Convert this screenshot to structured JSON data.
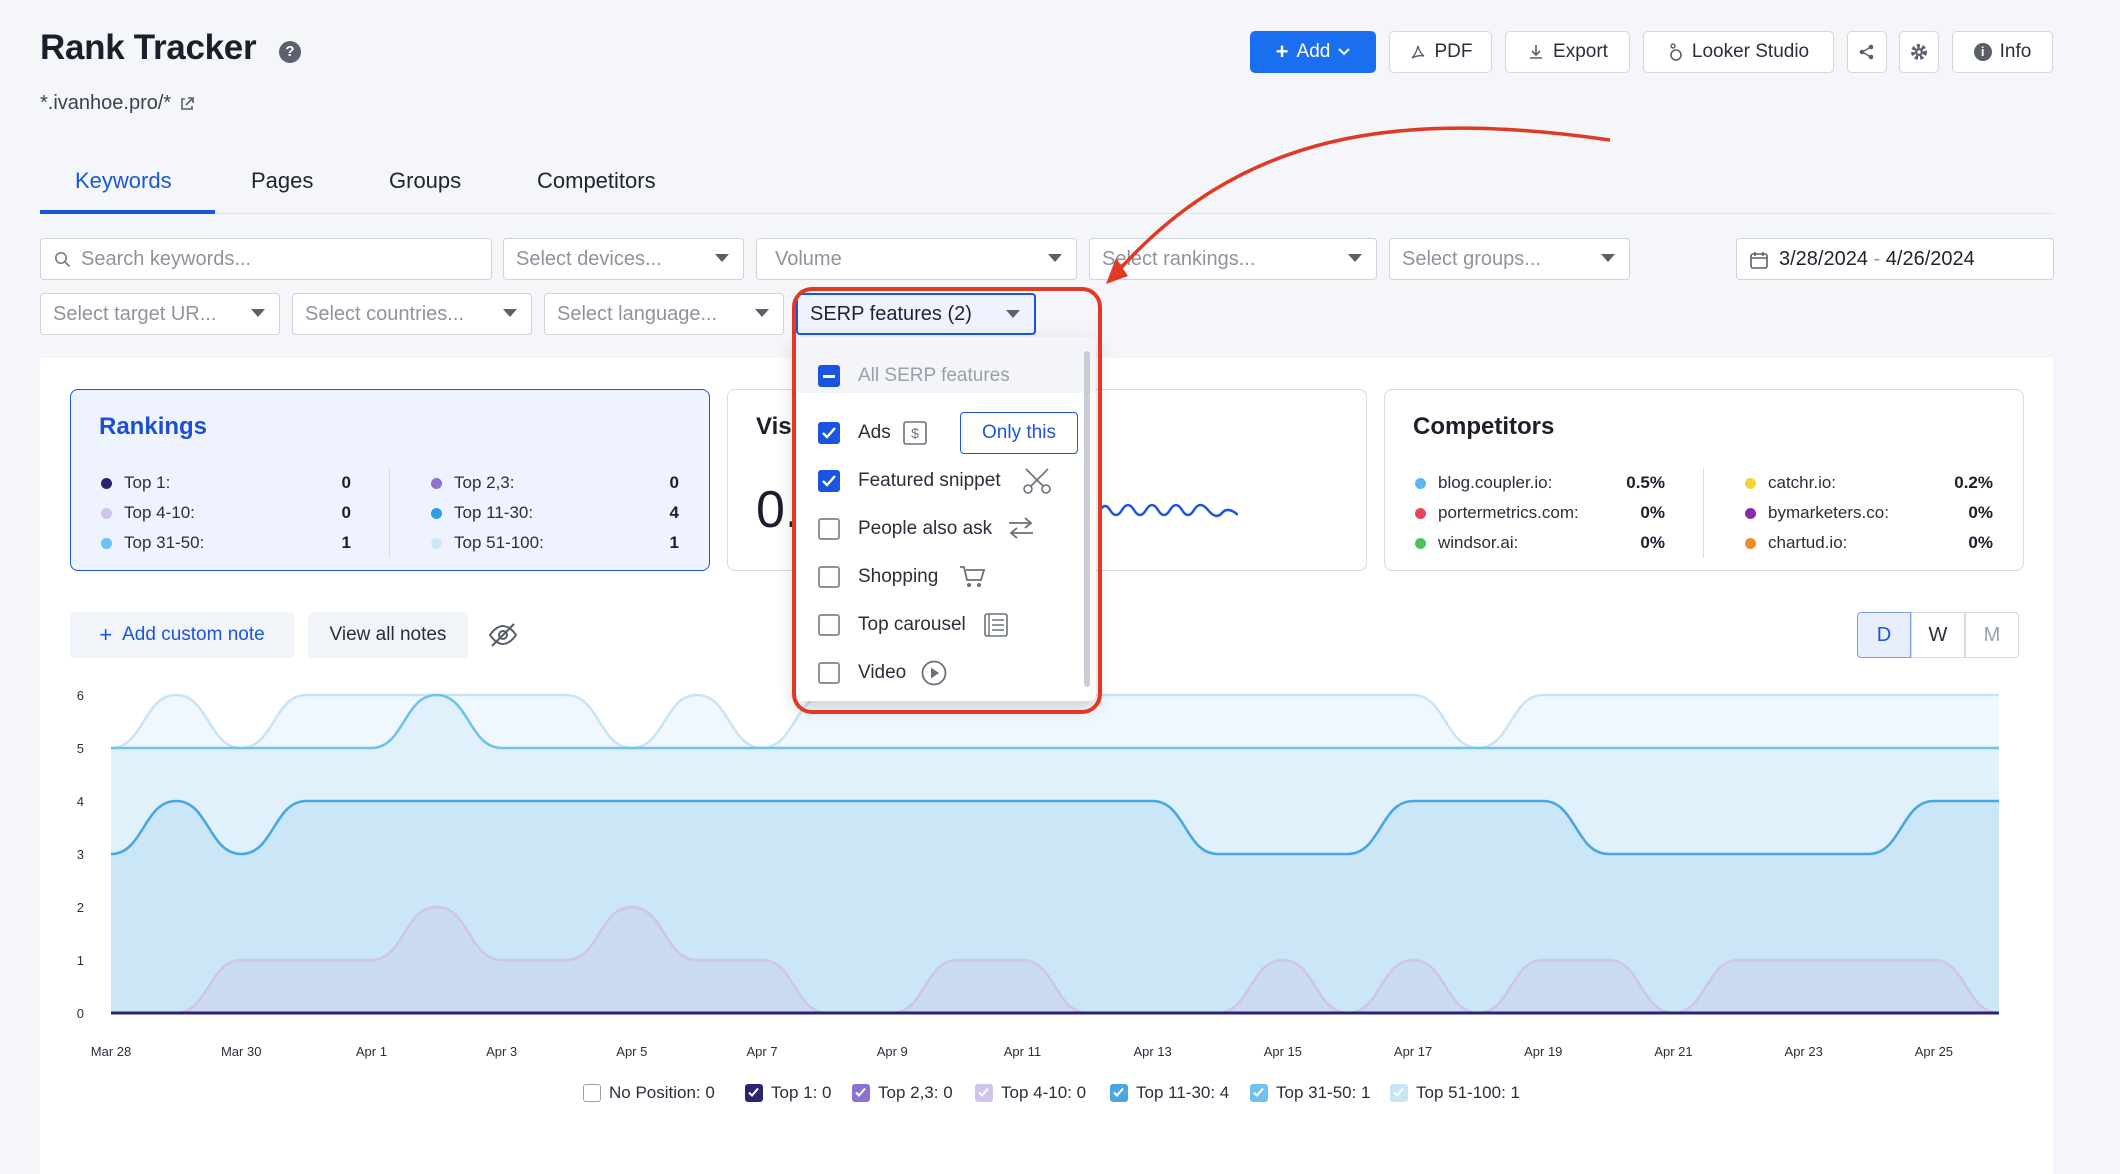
{
  "header": {
    "title": "Rank Tracker",
    "help": "?",
    "project": "*.ivanhoe.pro/*"
  },
  "toolbar": {
    "add": "Add",
    "pdf": "PDF",
    "export": "Export",
    "looker": "Looker Studio",
    "info": "Info"
  },
  "tabs": [
    "Keywords",
    "Pages",
    "Groups",
    "Competitors"
  ],
  "filters": {
    "search_placeholder": "Search keywords...",
    "devices": "Select devices...",
    "volume": "Volume",
    "rankings": "Select rankings...",
    "groups": "Select groups...",
    "date_start": "3/28/2024",
    "date_sep": " - ",
    "date_end": "4/26/2024",
    "target_url": "Select target UR...",
    "countries": "Select countries...",
    "language": "Select language...",
    "serp": "SERP features (2)"
  },
  "rankings_card": {
    "title": "Rankings",
    "items": [
      {
        "label": "Top 1:",
        "value": "0",
        "color": "#2b2470"
      },
      {
        "label": "Top 4-10:",
        "value": "0",
        "color": "#cfc4ea"
      },
      {
        "label": "Top 31-50:",
        "value": "1",
        "color": "#6dc2ee"
      },
      {
        "label": "Top 2,3:",
        "value": "0",
        "color": "#8d72cf"
      },
      {
        "label": "Top 11-30:",
        "value": "4",
        "color": "#2e9fe0"
      },
      {
        "label": "Top 51-100:",
        "value": "1",
        "color": "#cfe8f8"
      }
    ]
  },
  "visibility_card": {
    "title_fragment": "Visi",
    "value_fragment": "0."
  },
  "competitors_card": {
    "title": "Competitors",
    "items": [
      {
        "label": "blog.coupler.io:",
        "value": "0.5%",
        "color": "#5ab8ee"
      },
      {
        "label": "portermetrics.com:",
        "value": "0%",
        "color": "#e8455a"
      },
      {
        "label": "windsor.ai:",
        "value": "0%",
        "color": "#4bc35f"
      },
      {
        "label": "catchr.io:",
        "value": "0.2%",
        "color": "#f2d43b"
      },
      {
        "label": "bymarketers.co:",
        "value": "0%",
        "color": "#8e2aa8"
      },
      {
        "label": "chartud.io:",
        "value": "0%",
        "color": "#ef8b2a"
      }
    ]
  },
  "notes": {
    "add": "Add custom note",
    "view": "View all notes"
  },
  "period": [
    "D",
    "W",
    "M"
  ],
  "serp_dropdown": {
    "all": "All SERP features",
    "only_this": "Only this",
    "options": [
      {
        "label": "Ads",
        "checked": true,
        "icon": "dollar-icon"
      },
      {
        "label": "Featured snippet",
        "checked": true,
        "icon": "scissors-icon"
      },
      {
        "label": "People also ask",
        "checked": false,
        "icon": "arrows-icon"
      },
      {
        "label": "Shopping",
        "checked": false,
        "icon": "cart-icon"
      },
      {
        "label": "Top carousel",
        "checked": false,
        "icon": "carousel-icon"
      },
      {
        "label": "Video",
        "checked": false,
        "icon": "play-icon"
      }
    ]
  },
  "chart_data": {
    "type": "area",
    "x": [
      "Mar 28",
      "Mar 29",
      "Mar 30",
      "Mar 31",
      "Apr 1",
      "Apr 2",
      "Apr 3",
      "Apr 4",
      "Apr 5",
      "Apr 6",
      "Apr 7",
      "Apr 8",
      "Apr 9",
      "Apr 10",
      "Apr 11",
      "Apr 12",
      "Apr 13",
      "Apr 14",
      "Apr 15",
      "Apr 16",
      "Apr 17",
      "Apr 18",
      "Apr 19",
      "Apr 20",
      "Apr 21",
      "Apr 22",
      "Apr 23",
      "Apr 24",
      "Apr 25",
      "Apr 26"
    ],
    "xticks": [
      "Mar 28",
      "Mar 30",
      "Apr 1",
      "Apr 3",
      "Apr 5",
      "Apr 7",
      "Apr 9",
      "Apr 11",
      "Apr 13",
      "Apr 15",
      "Apr 17",
      "Apr 19",
      "Apr 21",
      "Apr 23",
      "Apr 25"
    ],
    "yticks": [
      "0",
      "1",
      "2",
      "3",
      "4",
      "5",
      "6"
    ],
    "ylim": [
      0,
      6
    ],
    "series": [
      {
        "name": "No Position",
        "color": "#b8c0cc",
        "values": [
          0,
          0,
          0,
          0,
          0,
          0,
          0,
          0,
          0,
          0,
          0,
          0,
          0,
          0,
          0,
          0,
          0,
          0,
          0,
          0,
          0,
          0,
          0,
          0,
          0,
          0,
          0,
          0,
          0,
          0
        ]
      },
      {
        "name": "Top 1",
        "color": "#2b2470",
        "values": [
          0,
          0,
          0,
          0,
          0,
          0,
          0,
          0,
          0,
          0,
          0,
          0,
          0,
          0,
          0,
          0,
          0,
          0,
          0,
          0,
          0,
          0,
          0,
          0,
          0,
          0,
          0,
          0,
          0,
          0
        ]
      },
      {
        "name": "Top 2,3",
        "color": "#8d72cf",
        "values": [
          0,
          0,
          0,
          0,
          0,
          0,
          0,
          0,
          0,
          0,
          0,
          0,
          0,
          0,
          0,
          0,
          0,
          0,
          0,
          0,
          0,
          0,
          0,
          0,
          0,
          0,
          0,
          0,
          0,
          0
        ]
      },
      {
        "name": "Top 4-10",
        "color": "#cfc4ea",
        "values": [
          0,
          0,
          1,
          1,
          1,
          2,
          1,
          1,
          2,
          1,
          1,
          0,
          0,
          1,
          1,
          0,
          0,
          0,
          1,
          0,
          1,
          0,
          1,
          1,
          0,
          1,
          1,
          1,
          1,
          0
        ]
      },
      {
        "name": "Top 11-30",
        "color": "#4aa6e0",
        "values": [
          3,
          4,
          3,
          4,
          4,
          4,
          4,
          4,
          4,
          4,
          4,
          4,
          4,
          4,
          4,
          4,
          4,
          3,
          3,
          3,
          4,
          4,
          4,
          3,
          3,
          3,
          3,
          3,
          4,
          4
        ]
      },
      {
        "name": "Top 31-50",
        "color": "#6dc2ee",
        "values": [
          5,
          5,
          5,
          5,
          5,
          6,
          5,
          5,
          5,
          5,
          5,
          5,
          5,
          5,
          5,
          5,
          5,
          5,
          5,
          5,
          5,
          5,
          5,
          5,
          5,
          5,
          5,
          5,
          5,
          5
        ]
      },
      {
        "name": "Top 51-100",
        "color": "#c9e4f6",
        "values": [
          5,
          6,
          5,
          6,
          6,
          6,
          6,
          6,
          5,
          6,
          5,
          6,
          6,
          6,
          6,
          6,
          6,
          6,
          6,
          6,
          6,
          5,
          6,
          6,
          6,
          6,
          6,
          6,
          6,
          6
        ]
      }
    ],
    "legend": [
      "No Position: 0",
      "Top 1: 0",
      "Top 2,3: 0",
      "Top 4-10: 0",
      "Top 11-30: 4",
      "Top 31-50: 1",
      "Top 51-100: 1"
    ]
  }
}
